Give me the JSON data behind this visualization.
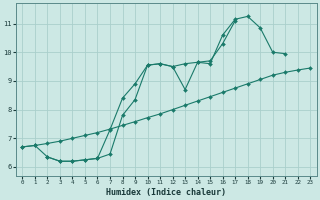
{
  "xlabel": "Humidex (Indice chaleur)",
  "bg_color": "#cce8e4",
  "grid_color": "#aacfcc",
  "line_color": "#1a7a6a",
  "xlim": [
    -0.5,
    23.5
  ],
  "ylim": [
    5.7,
    11.7
  ],
  "xticks": [
    0,
    1,
    2,
    3,
    4,
    5,
    6,
    7,
    8,
    9,
    10,
    11,
    12,
    13,
    14,
    15,
    16,
    17,
    18,
    19,
    20,
    21,
    22,
    23
  ],
  "yticks": [
    6,
    7,
    8,
    9,
    10,
    11
  ],
  "line1_x": [
    0,
    1,
    2,
    3,
    4,
    5,
    6,
    7,
    8,
    9,
    10,
    11,
    12,
    13,
    14,
    15,
    16,
    17,
    18,
    19,
    20,
    21,
    22,
    23
  ],
  "line1_y": [
    6.7,
    6.75,
    6.82,
    6.9,
    7.0,
    7.1,
    7.2,
    7.32,
    7.45,
    7.58,
    7.72,
    7.85,
    8.0,
    8.15,
    8.3,
    8.45,
    8.6,
    8.75,
    8.9,
    9.05,
    9.2,
    9.3,
    9.38,
    9.45
  ],
  "line2_x": [
    0,
    1,
    2,
    3,
    4,
    5,
    6,
    7,
    8,
    9,
    10,
    11,
    12,
    13,
    14,
    15,
    16,
    17,
    18,
    19,
    20,
    21
  ],
  "line2_y": [
    6.7,
    6.75,
    6.35,
    6.2,
    6.2,
    6.25,
    6.3,
    6.45,
    7.8,
    8.35,
    9.55,
    9.6,
    9.5,
    9.6,
    9.65,
    9.6,
    10.6,
    11.15,
    11.25,
    10.85,
    10.0,
    9.95
  ],
  "line3_x": [
    2,
    3,
    4,
    5,
    6,
    7,
    8,
    9,
    10,
    11,
    12,
    13,
    14,
    15,
    16,
    17
  ],
  "line3_y": [
    6.35,
    6.2,
    6.2,
    6.25,
    6.3,
    7.3,
    8.4,
    8.9,
    9.55,
    9.6,
    9.5,
    8.7,
    9.65,
    9.7,
    10.3,
    11.1
  ]
}
